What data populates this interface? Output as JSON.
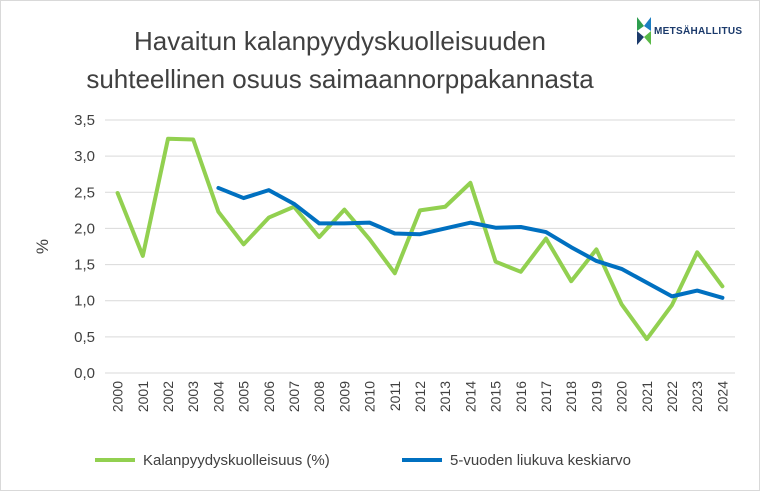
{
  "title": {
    "line1": "Havaitun kalanpyydyskuolleisuuden",
    "line2": "suhteellinen osuus saimaannorppakannasta"
  },
  "logo": {
    "text": "METSÄHALLITUS"
  },
  "colors": {
    "series1": "#92d050",
    "series2": "#0070c0",
    "grid": "#d9d9d9",
    "text": "#404040"
  },
  "chart_data": {
    "type": "line",
    "title": "Havaitun kalanpyydyskuolleisuuden suhteellinen osuus saimaannorppakannasta",
    "ylabel": "%",
    "xlabel": "",
    "ylim": [
      0,
      3.5
    ],
    "yticks": [
      "0,0",
      "0,5",
      "1,0",
      "1,5",
      "2,0",
      "2,5",
      "3,0",
      "3,5"
    ],
    "categories": [
      "2000",
      "2001",
      "2002",
      "2003",
      "2004",
      "2005",
      "2006",
      "2007",
      "2008",
      "2009",
      "2010",
      "2011",
      "2012",
      "2013",
      "2014",
      "2015",
      "2016",
      "2017",
      "2018",
      "2019",
      "2020",
      "2021",
      "2022",
      "2023",
      "2024"
    ],
    "grid": true,
    "legend_position": "bottom",
    "series": [
      {
        "name": "Kalanpyydyskuolleisuus (%)",
        "values": [
          2.49,
          1.62,
          3.24,
          3.23,
          2.23,
          1.78,
          2.15,
          2.3,
          1.88,
          2.26,
          1.85,
          1.38,
          2.25,
          2.3,
          2.63,
          1.54,
          1.4,
          1.86,
          1.27,
          1.71,
          0.95,
          0.47,
          0.94,
          1.67,
          1.2
        ]
      },
      {
        "name": "5-vuoden liukuva keskiarvo",
        "values": [
          null,
          null,
          null,
          null,
          2.56,
          2.42,
          2.53,
          2.34,
          2.07,
          2.07,
          2.08,
          1.93,
          1.92,
          2.0,
          2.08,
          2.01,
          2.02,
          1.95,
          1.74,
          1.55,
          1.44,
          1.25,
          1.06,
          1.14,
          1.04
        ]
      }
    ]
  }
}
